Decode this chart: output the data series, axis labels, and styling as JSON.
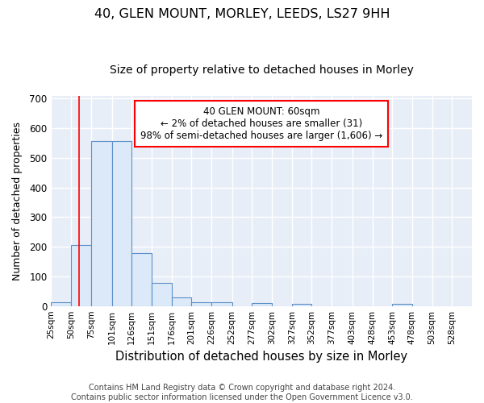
{
  "title1": "40, GLEN MOUNT, MORLEY, LEEDS, LS27 9HH",
  "title2": "Size of property relative to detached houses in Morley",
  "xlabel": "Distribution of detached houses by size in Morley",
  "ylabel": "Number of detached properties",
  "bin_labels": [
    "25sqm",
    "50sqm",
    "75sqm",
    "101sqm",
    "126sqm",
    "151sqm",
    "176sqm",
    "201sqm",
    "226sqm",
    "252sqm",
    "277sqm",
    "302sqm",
    "327sqm",
    "352sqm",
    "377sqm",
    "403sqm",
    "428sqm",
    "453sqm",
    "478sqm",
    "503sqm",
    "528sqm"
  ],
  "bin_edges": [
    25,
    50,
    75,
    101,
    126,
    151,
    176,
    201,
    226,
    252,
    277,
    302,
    327,
    352,
    377,
    403,
    428,
    453,
    478,
    503,
    528
  ],
  "bar_heights": [
    13,
    205,
    556,
    556,
    179,
    79,
    30,
    14,
    14,
    0,
    10,
    0,
    8,
    0,
    0,
    0,
    0,
    8,
    0,
    0,
    0
  ],
  "bar_color": "#dce9f8",
  "bar_edge_color": "#5b8fc9",
  "red_line_x": 60,
  "annotation_text": "40 GLEN MOUNT: 60sqm\n← 2% of detached houses are smaller (31)\n98% of semi-detached houses are larger (1,606) →",
  "annotation_box_color": "white",
  "annotation_box_edge_color": "red",
  "ylim": [
    0,
    710
  ],
  "yticks": [
    0,
    100,
    200,
    300,
    400,
    500,
    600,
    700
  ],
  "background_color": "#e8eef8",
  "grid_color": "white",
  "footer_text": "Contains HM Land Registry data © Crown copyright and database right 2024.\nContains public sector information licensed under the Open Government Licence v3.0.",
  "title1_fontsize": 11.5,
  "title2_fontsize": 10,
  "xlabel_fontsize": 10.5,
  "ylabel_fontsize": 9,
  "tick_fontsize": 7.5,
  "ytick_fontsize": 8.5,
  "footer_fontsize": 7,
  "annotation_fontsize": 8.5
}
